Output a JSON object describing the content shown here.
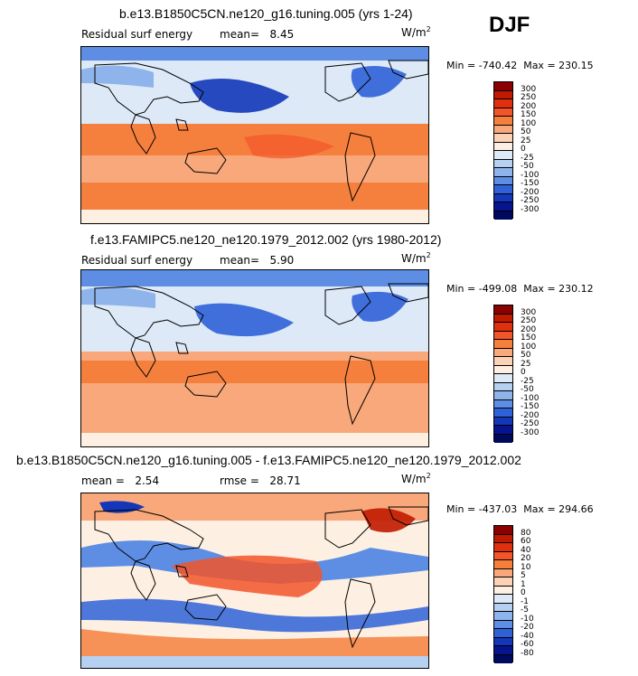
{
  "season": "DJF",
  "chart_data": [
    {
      "type": "heatmap",
      "title": "b.e13.B1850C5CN.ne120_g16.tuning.005 (yrs 1-24)",
      "field_label": "Residual surf energy",
      "mean_label": "mean=",
      "mean_value": "8.45",
      "units_base": "W/m",
      "units_exp": "2",
      "min_label": "Min = ",
      "min_value": "-740.42",
      "max_label": "Max = ",
      "max_value": "230.15",
      "levels": [
        "300",
        "250",
        "200",
        "150",
        "100",
        "50",
        "25",
        "0",
        "-25",
        "-50",
        "-100",
        "-150",
        "-200",
        "-250",
        "-300"
      ],
      "colors": [
        "#8b0000",
        "#c01a00",
        "#e03010",
        "#f2552a",
        "#f5803e",
        "#f8a87a",
        "#fbd2b6",
        "#fdf0e2",
        "#dde9f7",
        "#b5d0f0",
        "#8fb4ec",
        "#5d8ee4",
        "#2f62d8",
        "#1337b8",
        "#061490",
        "#000a5c"
      ]
    },
    {
      "type": "heatmap",
      "title": "f.e13.FAMIPC5.ne120_ne120.1979_2012.002 (yrs 1980-2012)",
      "field_label": "Residual surf energy",
      "mean_label": "mean=",
      "mean_value": "5.90",
      "units_base": "W/m",
      "units_exp": "2",
      "min_label": "Min = ",
      "min_value": "-499.08",
      "max_label": "Max = ",
      "max_value": "230.12",
      "levels": [
        "300",
        "250",
        "200",
        "150",
        "100",
        "50",
        "25",
        "0",
        "-25",
        "-50",
        "-100",
        "-150",
        "-200",
        "-250",
        "-300"
      ],
      "colors": [
        "#8b0000",
        "#c01a00",
        "#e03010",
        "#f2552a",
        "#f5803e",
        "#f8a87a",
        "#fbd2b6",
        "#fdf0e2",
        "#dde9f7",
        "#b5d0f0",
        "#8fb4ec",
        "#5d8ee4",
        "#2f62d8",
        "#1337b8",
        "#061490",
        "#000a5c"
      ]
    },
    {
      "type": "heatmap",
      "title": "b.e13.B1850C5CN.ne120_g16.tuning.005 - f.e13.FAMIPC5.ne120_ne120.1979_2012.002",
      "mean_label": "mean =",
      "mean_value": "2.54",
      "rmse_label": "rmse =",
      "rmse_value": "28.71",
      "units_base": "W/m",
      "units_exp": "2",
      "min_label": "Min = ",
      "min_value": "-437.03",
      "max_label": "Max = ",
      "max_value": "294.66",
      "levels": [
        "80",
        "60",
        "40",
        "20",
        "10",
        "5",
        "1",
        "0",
        "-1",
        "-5",
        "-10",
        "-20",
        "-40",
        "-60",
        "-80"
      ],
      "colors": [
        "#8b0000",
        "#c01a00",
        "#e03010",
        "#f2552a",
        "#f5803e",
        "#f8a87a",
        "#fbd2b6",
        "#fdf0e2",
        "#dde9f7",
        "#b5d0f0",
        "#8fb4ec",
        "#5d8ee4",
        "#2f62d8",
        "#1337b8",
        "#061490",
        "#000a5c"
      ]
    }
  ]
}
